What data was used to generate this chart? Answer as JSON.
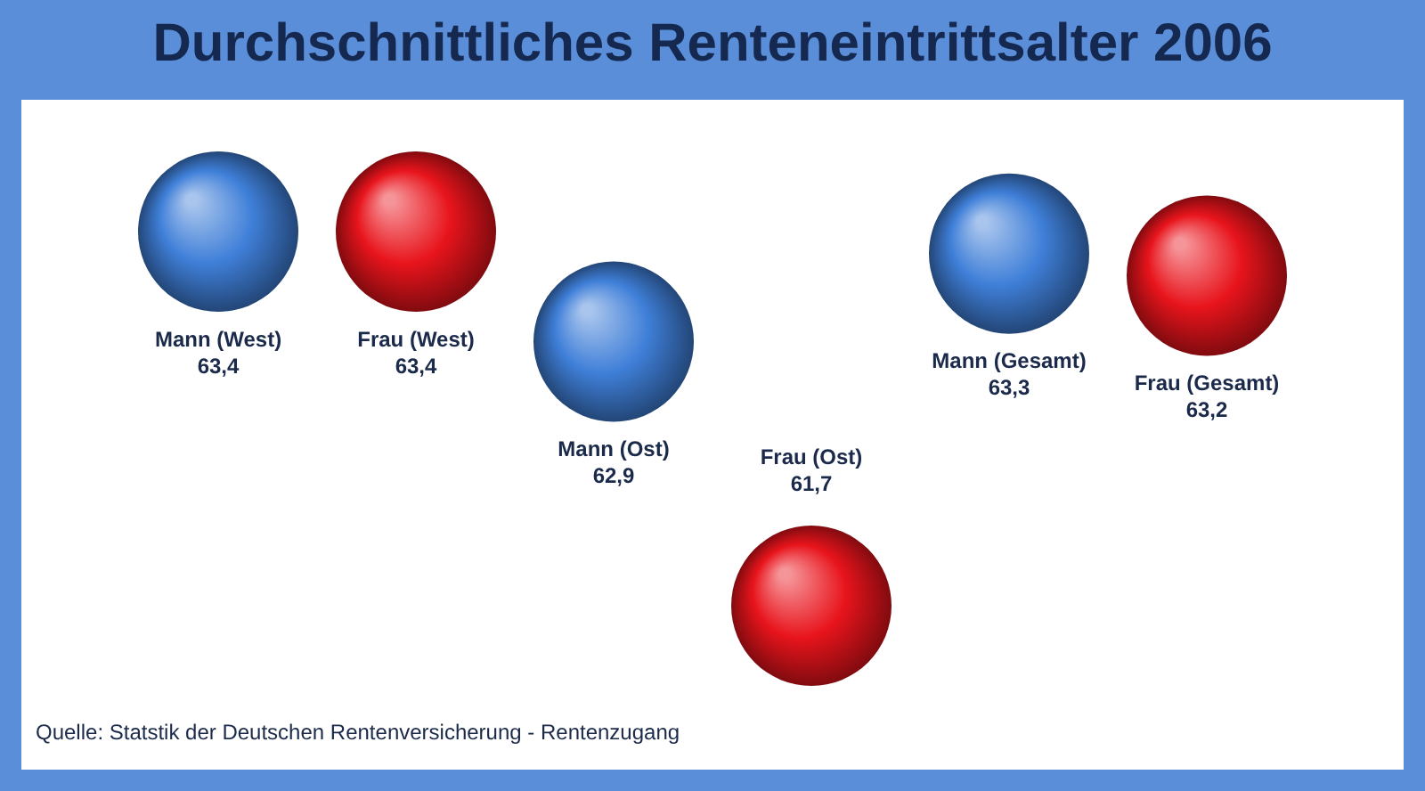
{
  "chart_data": {
    "type": "scatter",
    "title": "Durchschnittliches Renteneintrittsalter 2006",
    "categories": [
      "Mann (West)",
      "Frau (West)",
      "Mann (Ost)",
      "Frau (Ost)",
      "Mann (Gesamt)",
      "Frau (Gesamt)"
    ],
    "values": [
      63.4,
      63.4,
      62.9,
      61.7,
      63.3,
      63.2
    ],
    "value_labels": [
      "63,4",
      "63,4",
      "62,9",
      "61,7",
      "63,3",
      "63,2"
    ],
    "colors": [
      "#3f7fd8",
      "#e8141c",
      "#3f7fd8",
      "#e8141c",
      "#3f7fd8",
      "#e8141c"
    ],
    "tick_labels": false,
    "annotations": [
      "Quelle: Statstik der Deutschen Rentenversicherung - Rentenzugang"
    ]
  }
}
